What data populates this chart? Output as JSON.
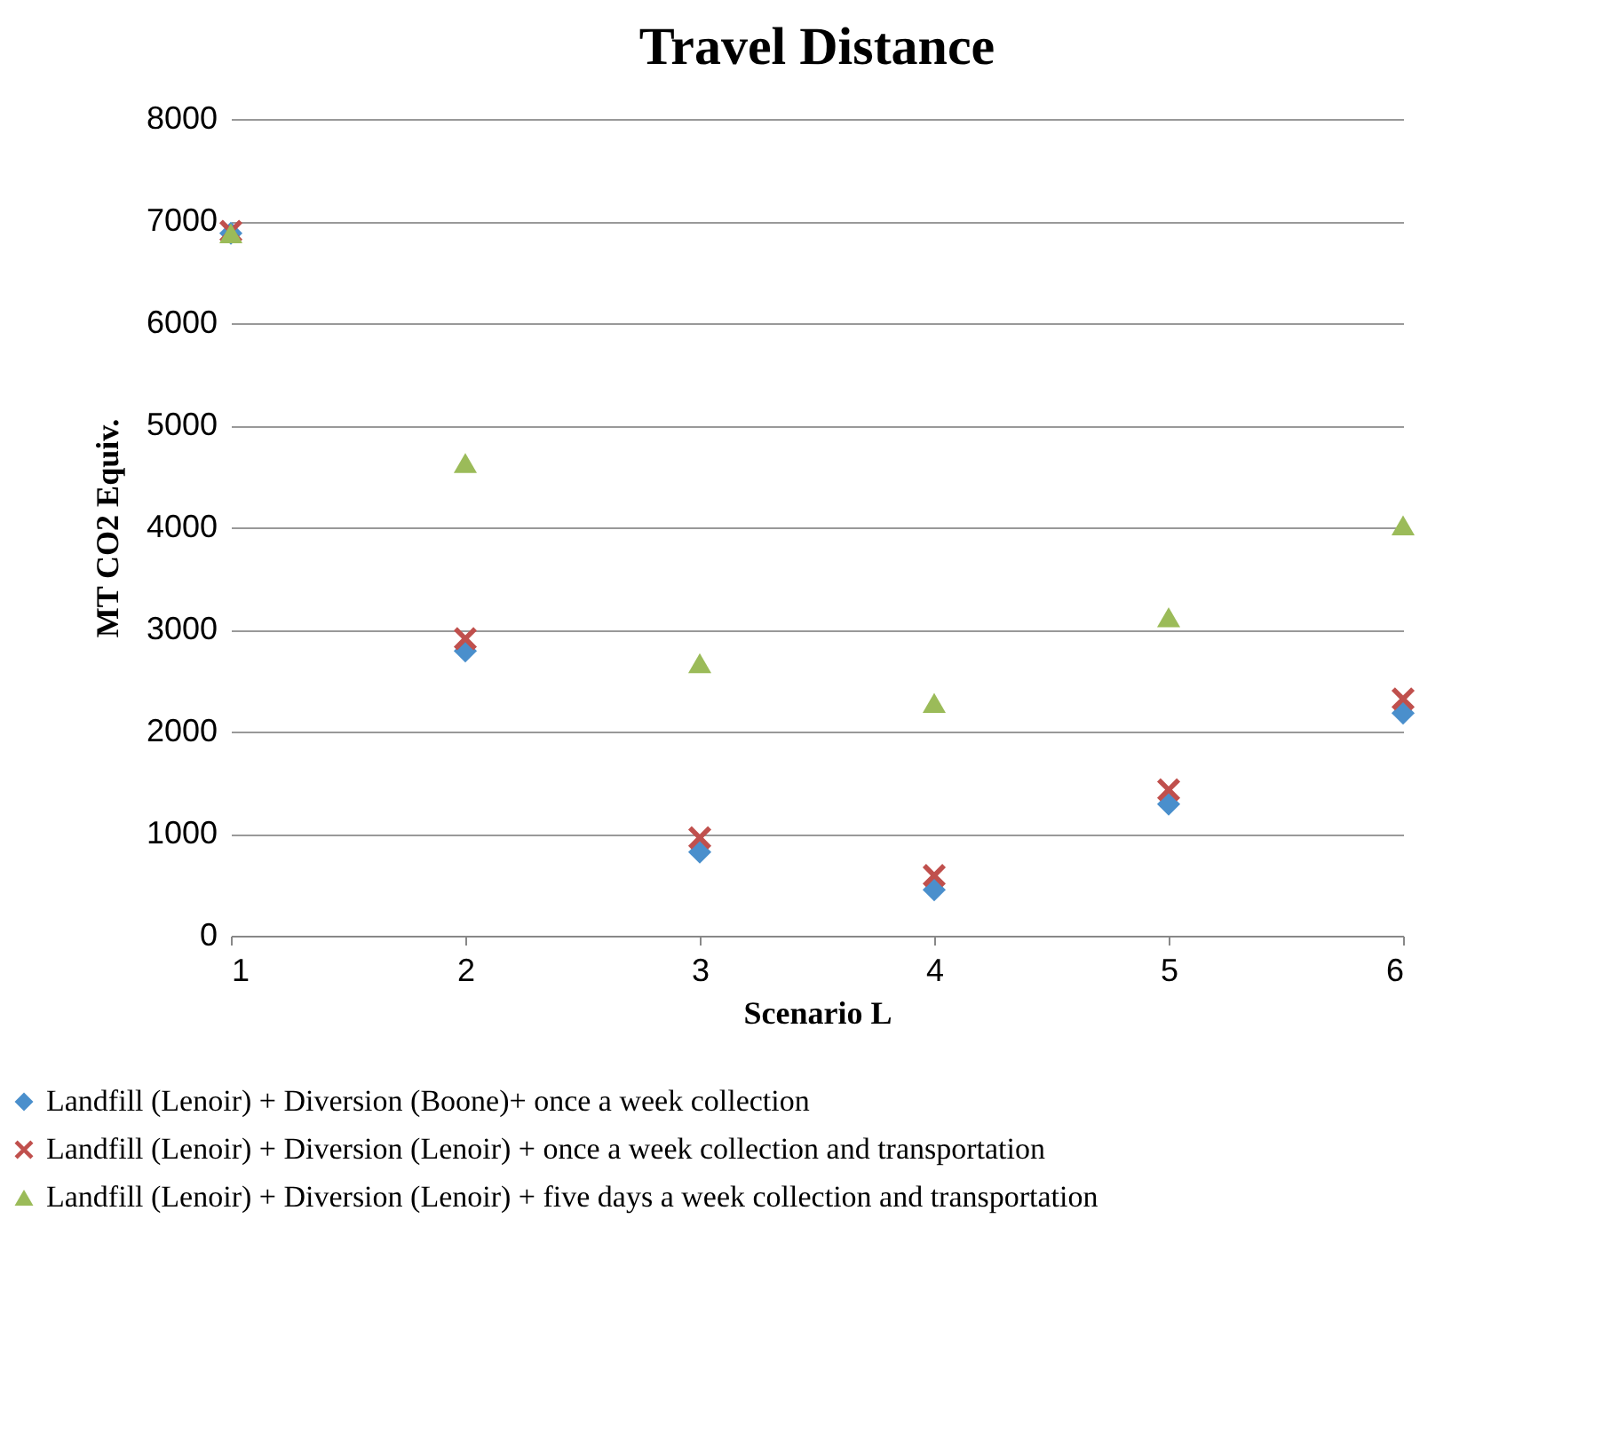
{
  "chart_data": {
    "type": "scatter",
    "title": "Travel Distance",
    "xlabel": "Scenario L",
    "ylabel": "MT CO2 Equiv.",
    "x": [
      1,
      2,
      3,
      4,
      5,
      6
    ],
    "series": [
      {
        "name": "Landfill (Lenoir) + Diversion (Boone)+ once a week collection",
        "color": "#4a8fcc",
        "marker": "diamond",
        "values": [
          6880,
          2790,
          820,
          450,
          1290,
          2180
        ]
      },
      {
        "name": "Landfill (Lenoir) + Diversion (Lenoir) + once a week collection and transportation",
        "color": "#c0504d",
        "marker": "cross",
        "values": [
          6900,
          2910,
          960,
          590,
          1430,
          2320
        ]
      },
      {
        "name": "Landfill (Lenoir) + Diversion (Lenoir) + five days a week collection and transportation",
        "color": "#9bbb59",
        "marker": "triangle",
        "values": [
          6880,
          4630,
          2670,
          2280,
          3120,
          4020
        ]
      }
    ],
    "xlim": [
      1,
      6
    ],
    "xticks": [
      1,
      2,
      3,
      4,
      5,
      6
    ],
    "ylim": [
      0,
      8000
    ],
    "yticks": [
      0,
      1000,
      2000,
      3000,
      4000,
      5000,
      6000,
      7000,
      8000
    ],
    "grid": "y",
    "legend": "bottom"
  }
}
